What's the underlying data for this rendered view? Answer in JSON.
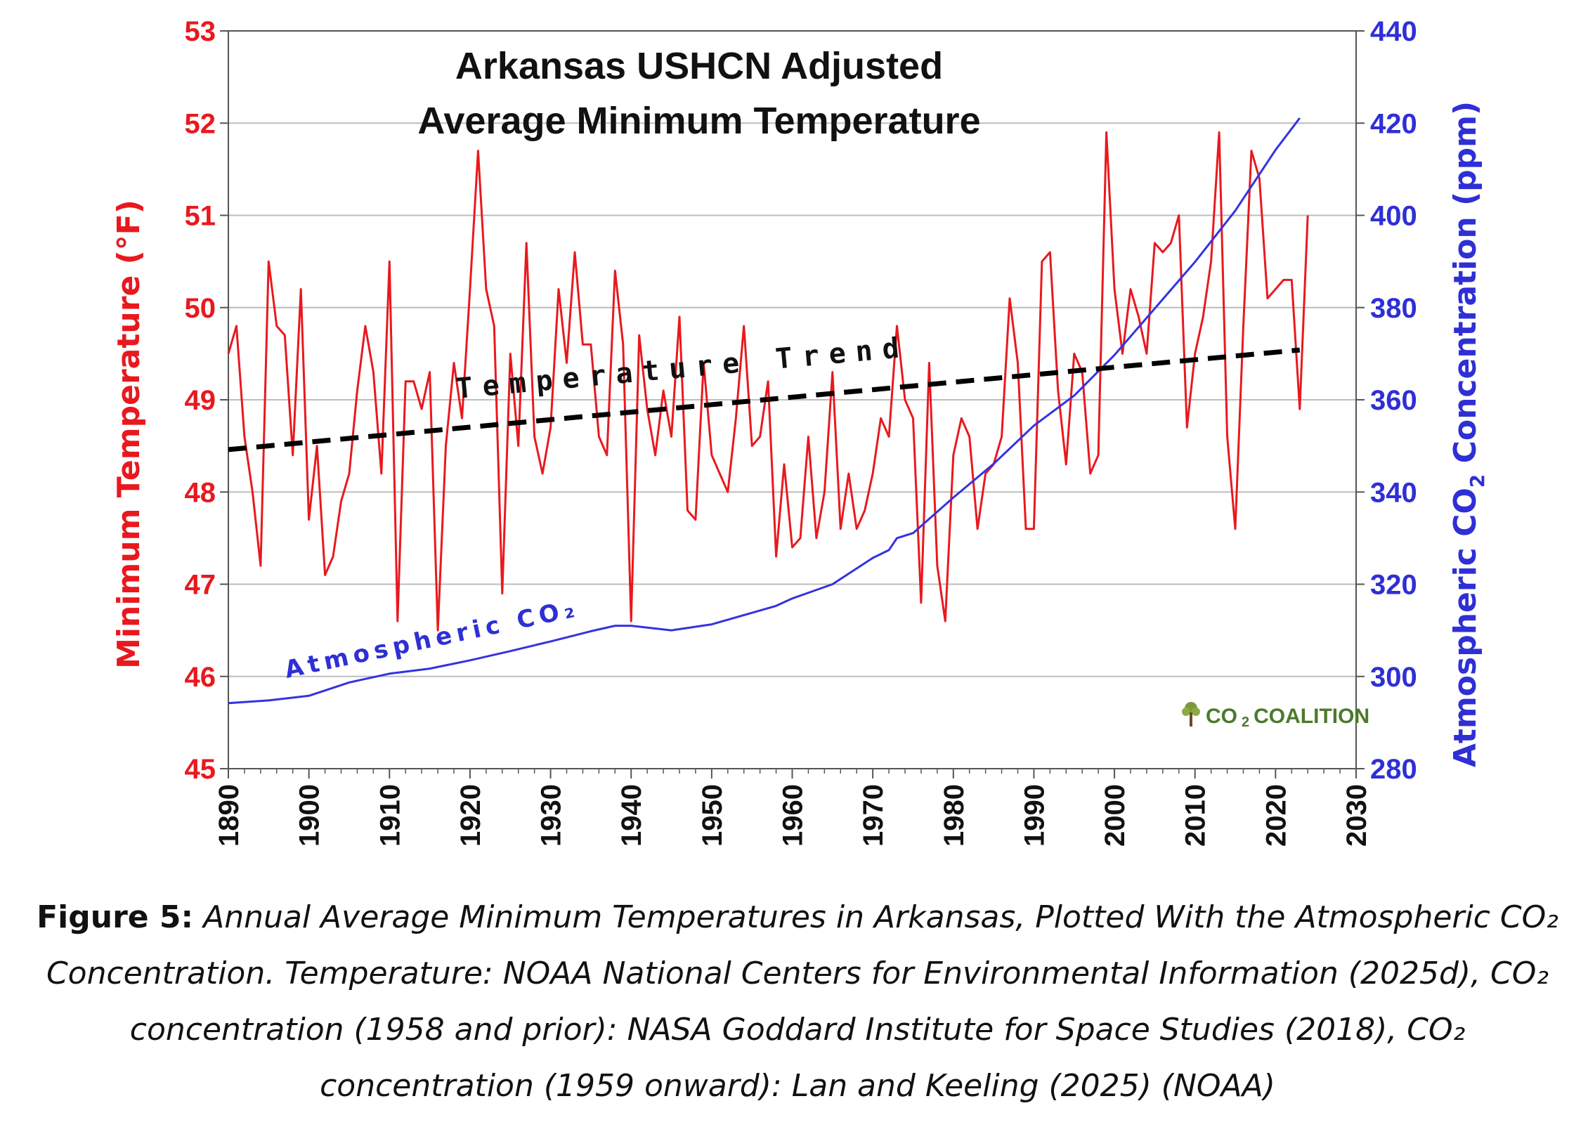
{
  "chart_data": {
    "type": "line",
    "title_lines": [
      "Arkansas USHCN Adjusted",
      "Average Minimum Temperature"
    ],
    "xlabel": "",
    "ylabel_left": "Minimum Temperature (°F)",
    "ylabel_right_parts": [
      "Atmospheric CO",
      "2",
      " Concentration (ppm)"
    ],
    "xlim": [
      1890,
      2030
    ],
    "ylim_left": [
      45,
      53
    ],
    "ylim_right": [
      280,
      440
    ],
    "x_ticks": [
      "1890",
      "1900",
      "1910",
      "1920",
      "1930",
      "1940",
      "1950",
      "1960",
      "1970",
      "1980",
      "1990",
      "2000",
      "2010",
      "2020",
      "2030"
    ],
    "y_left_ticks": [
      "45",
      "46",
      "47",
      "48",
      "49",
      "50",
      "51",
      "52",
      "53"
    ],
    "y_right_ticks": [
      "280",
      "300",
      "320",
      "340",
      "360",
      "380",
      "400",
      "420",
      "440"
    ],
    "grid": true,
    "series": [
      {
        "name": "Minimum Temperature",
        "axis": "left",
        "color": "#e8191e",
        "x_start": 1890,
        "values": [
          49.5,
          49.8,
          48.6,
          48.0,
          47.2,
          50.5,
          49.8,
          49.7,
          48.4,
          50.2,
          47.7,
          48.5,
          47.1,
          47.3,
          47.9,
          48.2,
          49.1,
          49.8,
          49.3,
          48.2,
          50.5,
          46.6,
          49.2,
          49.2,
          48.9,
          49.3,
          46.5,
          48.5,
          49.4,
          48.8,
          50.2,
          51.7,
          50.2,
          49.8,
          46.9,
          49.5,
          48.5,
          50.7,
          48.6,
          48.2,
          48.7,
          50.2,
          49.4,
          50.6,
          49.6,
          49.6,
          48.6,
          48.4,
          50.4,
          49.6,
          46.6,
          49.7,
          48.9,
          48.4,
          49.1,
          48.6,
          49.9,
          47.8,
          47.7,
          49.4,
          48.4,
          48.2,
          48.0,
          48.8,
          49.8,
          48.5,
          48.6,
          49.2,
          47.3,
          48.3,
          47.4,
          47.5,
          48.6,
          47.5,
          48.0,
          49.3,
          47.6,
          48.2,
          47.6,
          47.8,
          48.2,
          48.8,
          48.6,
          49.8,
          49.0,
          48.8,
          46.8,
          49.4,
          47.2,
          46.6,
          48.4,
          48.8,
          48.6,
          47.6,
          48.2,
          48.3,
          48.6,
          50.1,
          49.4,
          47.6,
          47.6,
          50.5,
          50.6,
          49.1,
          48.3,
          49.5,
          49.3,
          48.2,
          48.4,
          51.9,
          50.2,
          49.5,
          50.2,
          49.9,
          49.5,
          50.7,
          50.6,
          50.7,
          51.0,
          48.7,
          49.5,
          49.9,
          50.5,
          51.9,
          48.6,
          47.6,
          49.8,
          51.7,
          51.4,
          50.1,
          50.2,
          50.3,
          50.3,
          48.9,
          51.0
        ],
        "x_end": 2023
      },
      {
        "name": "Atmospheric CO₂",
        "axis": "right",
        "color": "#3333e0",
        "x": [
          1890,
          1895,
          1900,
          1905,
          1910,
          1915,
          1920,
          1925,
          1930,
          1935,
          1938,
          1940,
          1945,
          1950,
          1955,
          1958,
          1960,
          1965,
          1970,
          1972,
          1973,
          1975,
          1980,
          1985,
          1990,
          1995,
          2000,
          2005,
          2010,
          2015,
          2020,
          2023
        ],
        "values": [
          294.2,
          294.8,
          295.8,
          298.7,
          300.6,
          301.7,
          303.5,
          305.5,
          307.6,
          309.8,
          311.0,
          311.0,
          310.0,
          311.3,
          313.8,
          315.3,
          316.9,
          320.0,
          325.7,
          327.4,
          330.0,
          331.1,
          338.8,
          346.1,
          354.4,
          360.9,
          369.7,
          379.8,
          389.9,
          401.0,
          414.2,
          421.1
        ]
      },
      {
        "name": "Temperature Trend",
        "axis": "left",
        "color": "#000000",
        "style": "dashed",
        "x": [
          1890,
          2023
        ],
        "values": [
          48.46,
          49.54
        ]
      }
    ],
    "annotations": [
      {
        "text": "Temperature Trend",
        "kind": "trend-label"
      },
      {
        "text": "Atmospheric CO₂",
        "kind": "co2-label"
      }
    ]
  },
  "logo": {
    "text_a": "CO",
    "text_sub": "2",
    "text_b": "COALITION",
    "icon": "tree-icon"
  },
  "caption": {
    "lead": "Figure 5:",
    "body": " Annual Average Minimum Temperatures in Arkansas, Plotted With the Atmospheric CO₂ Concentration. Temperature: NOAA National Centers for Environmental Information (2025d), CO₂ concentration (1958 and prior): NASA Goddard Institute for Space Studies (2018), CO₂ concentration (1959 onward): Lan and Keeling (2025) (NOAA)"
  }
}
